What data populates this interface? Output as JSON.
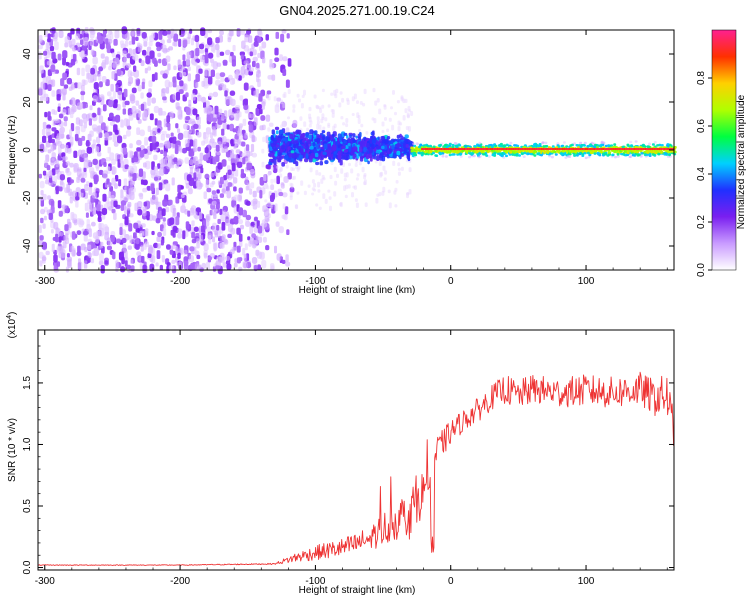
{
  "title": "GN04.2025.271.00.19.C24",
  "chart_data": [
    {
      "type": "heatmap",
      "name": "spectrogram",
      "xlabel": "Height of straight line (km)",
      "ylabel": "Frequency (Hz)",
      "xlim": [
        -305,
        165
      ],
      "ylim": [
        -50,
        50
      ],
      "xticks": [
        -300,
        -200,
        -100,
        0,
        100
      ],
      "yticks": [
        -40,
        -20,
        0,
        20,
        40
      ],
      "colorbar": {
        "label": "Normalized spectral amplitude",
        "range": [
          0.0,
          1.0
        ],
        "ticks": [
          0.0,
          0.2,
          0.4,
          0.6,
          0.8
        ],
        "tick_labels": [
          "0.0",
          "0.2",
          "0.4",
          "0.6",
          "0.8"
        ],
        "colormap": [
          "#ffffff",
          "#c99bff",
          "#7a1ff0",
          "#2030ff",
          "#00d0ff",
          "#00ff40",
          "#b0ff00",
          "#ffd000",
          "#ff3000",
          "#ff2090"
        ]
      },
      "regions": [
        {
          "x": [
            -305,
            -130
          ],
          "freq": [
            -50,
            50
          ],
          "amplitude": 0.25,
          "pattern": "broadband noise"
        },
        {
          "x": [
            -135,
            -30
          ],
          "freq": [
            -12,
            12
          ],
          "amplitude": 0.35,
          "pattern": "scattered energy near 0 Hz"
        },
        {
          "x": [
            -30,
            165
          ],
          "freq": [
            -2,
            2
          ],
          "amplitude": 0.95,
          "pattern": "narrow band at 0 Hz"
        }
      ]
    },
    {
      "type": "line",
      "name": "snr",
      "xlabel": "Height of straight line (km)",
      "ylabel": "SNR (10 * v/v)",
      "multiplier": "(x10",
      "multiplier_exp": "4",
      "multiplier_close": ")",
      "xlim": [
        -305,
        165
      ],
      "ylim": [
        -0.02,
        1.93
      ],
      "xticks": [
        -300,
        -200,
        -100,
        0,
        100
      ],
      "yticks": [
        0.0,
        0.5,
        1.0,
        1.5
      ],
      "ytick_labels": [
        "0.0",
        "0.5",
        "1.0",
        "1.5"
      ],
      "color": "#ee3333",
      "series": [
        {
          "name": "SNR",
          "x": [
            -305,
            -200,
            -130,
            -115,
            -100,
            -90,
            -80,
            -70,
            -60,
            -50,
            -40,
            -30,
            -20,
            -15,
            -10,
            0,
            10,
            20,
            30,
            40,
            50,
            60,
            80,
            100,
            120,
            140,
            150,
            160,
            165
          ],
          "y": [
            0.02,
            0.02,
            0.03,
            0.08,
            0.12,
            0.14,
            0.16,
            0.19,
            0.24,
            0.31,
            0.38,
            0.45,
            0.62,
            0.78,
            0.95,
            1.1,
            1.2,
            1.28,
            1.38,
            1.45,
            1.4,
            1.45,
            1.42,
            1.44,
            1.42,
            1.45,
            1.38,
            1.4,
            1.0
          ],
          "noise": [
            0.003,
            0.003,
            0.005,
            0.04,
            0.06,
            0.07,
            0.08,
            0.09,
            0.1,
            0.14,
            0.16,
            0.22,
            0.18,
            0.14,
            0.12,
            0.1,
            0.09,
            0.1,
            0.1,
            0.12,
            0.12,
            0.12,
            0.12,
            0.13,
            0.13,
            0.14,
            0.15,
            0.18,
            0.3
          ]
        }
      ]
    }
  ]
}
